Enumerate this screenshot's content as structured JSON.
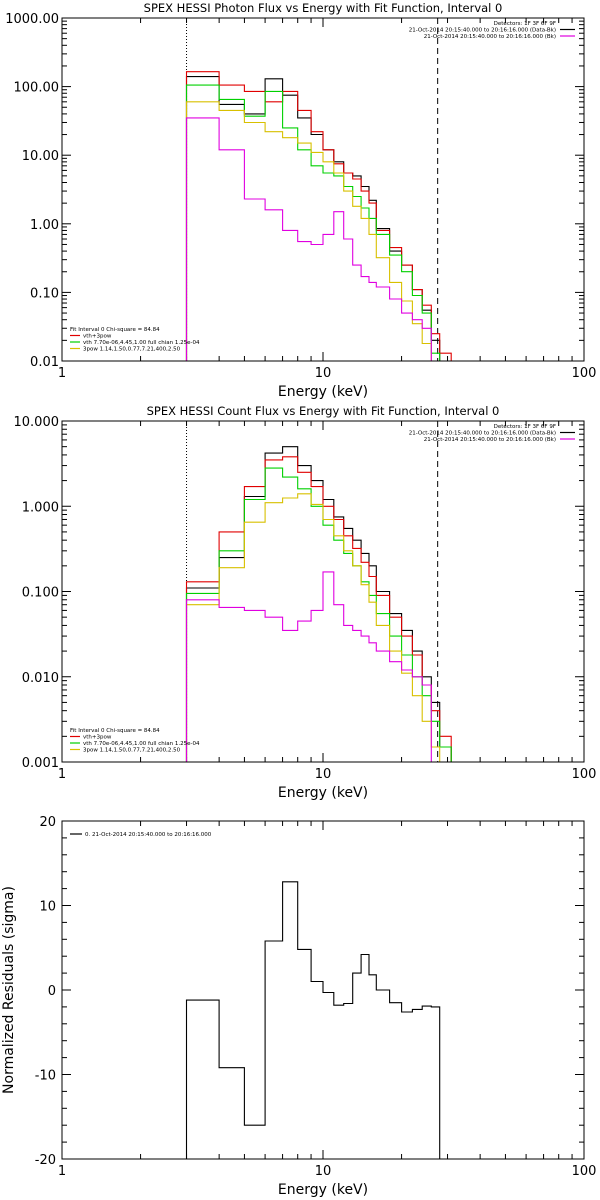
{
  "chart_data": [
    {
      "type": "step-line",
      "scale": {
        "x": "log",
        "y": "log"
      },
      "title": "SPEX HESSI Photon Flux vs Energy with Fit Function, Interval 0",
      "xlabel": "Energy (keV)",
      "xlim": [
        1,
        100
      ],
      "ylim": [
        0.01,
        1000
      ],
      "xticks": [
        "1",
        "10",
        "100"
      ],
      "yticks": [
        "0.01",
        "0.10",
        "1.00",
        "10.00",
        "100.00",
        "1000.00"
      ],
      "legend_top": [
        {
          "text": "Detectors: 1F 3F 6F 9F",
          "color": ""
        },
        {
          "text": "21-Oct-2014 20:15:40.000 to 20:16:16.000 (Data-Bk)",
          "color": "#000000"
        },
        {
          "text": "21-Oct-2014 20:15:40.000 to 20:16:16.000 (Bk)",
          "color": "#e000e0"
        }
      ],
      "legend_bottom": [
        {
          "text": "Fit Interval 0   Chi-square = 84.84",
          "color": ""
        },
        {
          "text": "vth+3pow",
          "color": "#e00000"
        },
        {
          "text": "vth 7.70e-06,4.45,1.00   full chian 1.25e-04",
          "color": "#00d000"
        },
        {
          "text": "3pow 1.14,1.50,0.77,7.21,400,2.50",
          "color": "#d8c000"
        }
      ],
      "vlines": [
        {
          "x": 3.0,
          "style": "dotted"
        },
        {
          "x": 27.5,
          "style": "dashed"
        }
      ],
      "bin_edges": [
        3.0,
        4.0,
        5.0,
        6.0,
        7.0,
        8.0,
        9.0,
        10.0,
        11.0,
        12.0,
        13.0,
        14.0,
        15.0,
        16.0,
        18.0,
        20.0,
        22.0,
        24.0,
        26.0,
        28.0,
        31.0,
        34.0
      ],
      "series": [
        {
          "name": "Data-Bk",
          "color": "#000000",
          "values": [
            140,
            55,
            40,
            130,
            75,
            35,
            20,
            12,
            8,
            5.5,
            5,
            3.5,
            2.2,
            0.85,
            0.4,
            0.25,
            0.11,
            0.055,
            0.02,
            0.01,
            null
          ]
        },
        {
          "name": "vth+3pow",
          "color": "#e00000",
          "values": [
            165,
            105,
            85,
            60,
            85,
            45,
            22,
            12,
            7.5,
            5.5,
            4.5,
            3,
            2,
            0.8,
            0.45,
            0.25,
            0.11,
            0.065,
            0.025,
            0.013,
            null
          ]
        },
        {
          "name": "vth",
          "color": "#00d000",
          "values": [
            105,
            65,
            37,
            85,
            25,
            12,
            7,
            5.5,
            5,
            3.5,
            2.5,
            1.7,
            1.2,
            0.7,
            0.35,
            0.2,
            0.09,
            0.05,
            0.013,
            null,
            null
          ]
        },
        {
          "name": "3pow",
          "color": "#d8c000",
          "values": [
            60,
            45,
            30,
            22,
            18,
            15,
            11,
            8,
            5.5,
            3,
            1.8,
            1.2,
            0.7,
            0.32,
            0.14,
            0.075,
            0.035,
            0.018,
            0.01,
            null,
            null
          ]
        },
        {
          "name": "Bk",
          "color": "#e000e0",
          "values": [
            35,
            12,
            2.3,
            1.6,
            0.8,
            0.55,
            0.5,
            0.7,
            1.5,
            0.6,
            0.25,
            0.17,
            0.14,
            0.12,
            0.08,
            0.05,
            0.04,
            0.03,
            null,
            null,
            null
          ]
        }
      ]
    },
    {
      "type": "step-line",
      "scale": {
        "x": "log",
        "y": "log"
      },
      "title": "SPEX HESSI Count Flux vs Energy with Fit Function, Interval 0",
      "xlabel": "Energy (keV)",
      "xlim": [
        1,
        100
      ],
      "ylim": [
        0.001,
        10
      ],
      "xticks": [
        "1",
        "10",
        "100"
      ],
      "yticks": [
        "0.001",
        "0.010",
        "0.100",
        "1.000",
        "10.000"
      ],
      "legend_top": [
        {
          "text": "Detectors: 1F 3F 6F 9F",
          "color": ""
        },
        {
          "text": "21-Oct-2014 20:15:40.000 to 20:16:16.000 (Data-Bk)",
          "color": "#000000"
        },
        {
          "text": "21-Oct-2014 20:15:40.000 to 20:16:16.000 (Bk)",
          "color": "#e000e0"
        }
      ],
      "legend_bottom": [
        {
          "text": "Fit Interval 0   Chi-square = 84.84",
          "color": ""
        },
        {
          "text": "vth+3pow",
          "color": "#e00000"
        },
        {
          "text": "vth 7.70e-06,4.45,1.00   full chian 1.25e-04",
          "color": "#00d000"
        },
        {
          "text": "3pow 1.14,1.50,0.77,7.21,400,2.50",
          "color": "#d8c000"
        }
      ],
      "vlines": [
        {
          "x": 3.0,
          "style": "dotted"
        },
        {
          "x": 27.5,
          "style": "dashed"
        }
      ],
      "bin_edges": [
        3.0,
        4.0,
        5.0,
        6.0,
        7.0,
        8.0,
        9.0,
        10.0,
        11.0,
        12.0,
        13.0,
        14.0,
        15.0,
        16.0,
        18.0,
        20.0,
        22.0,
        24.0,
        26.0,
        28.0,
        31.0,
        34.0
      ],
      "series": [
        {
          "name": "Data-Bk",
          "color": "#000000",
          "values": [
            0.11,
            0.25,
            1.3,
            4.2,
            5.0,
            3.0,
            2.0,
            1.2,
            0.75,
            0.55,
            0.4,
            0.28,
            0.2,
            0.1,
            0.055,
            0.035,
            0.02,
            0.01,
            0.005,
            0.0015,
            null
          ]
        },
        {
          "name": "vth+3pow",
          "color": "#e00000",
          "values": [
            0.13,
            0.5,
            1.7,
            3.5,
            3.8,
            2.5,
            1.7,
            1.0,
            0.7,
            0.45,
            0.32,
            0.22,
            0.15,
            0.09,
            0.05,
            0.03,
            0.018,
            0.008,
            0.004,
            0.002,
            null
          ]
        },
        {
          "name": "vth",
          "color": "#00d000",
          "values": [
            0.095,
            0.3,
            1.2,
            2.8,
            2.2,
            1.6,
            1.0,
            0.6,
            0.4,
            0.28,
            0.2,
            0.13,
            0.09,
            0.055,
            0.03,
            0.018,
            0.01,
            0.006,
            0.003,
            0.0015,
            null
          ]
        },
        {
          "name": "3pow",
          "color": "#d8c000",
          "values": [
            0.07,
            0.19,
            0.65,
            1.1,
            1.25,
            1.4,
            1.05,
            0.7,
            0.45,
            0.3,
            0.2,
            0.12,
            0.075,
            0.04,
            0.02,
            0.011,
            0.006,
            0.003,
            0.0015,
            null,
            null
          ]
        },
        {
          "name": "Bk",
          "color": "#e000e0",
          "values": [
            0.08,
            0.065,
            0.06,
            0.05,
            0.035,
            0.045,
            0.06,
            0.17,
            0.07,
            0.04,
            0.035,
            0.03,
            0.025,
            0.02,
            0.015,
            0.012,
            0.01,
            0.008,
            null,
            null,
            null
          ]
        }
      ]
    },
    {
      "type": "step-line",
      "scale": {
        "x": "log",
        "y": "linear"
      },
      "title": "",
      "xlabel": "Energy (keV)",
      "ylabel": "Normalized Residuals (sigma)",
      "xlim": [
        1,
        100
      ],
      "ylim": [
        -20,
        20
      ],
      "xticks": [
        "1",
        "10",
        "100"
      ],
      "yticks": [
        "-20",
        "-10",
        "0",
        "10",
        "20"
      ],
      "legend_top": [
        {
          "text": "0. 21-Oct-2014 20:15:40.000 to 20:16:16.000",
          "color": "#000000"
        }
      ],
      "bin_edges": [
        3.0,
        4.0,
        5.0,
        6.0,
        7.0,
        8.0,
        9.0,
        10.0,
        11.0,
        12.0,
        13.0,
        14.0,
        15.0,
        16.0,
        18.0,
        20.0,
        22.0,
        24.0,
        26.0,
        28.0
      ],
      "series": [
        {
          "name": "Residuals",
          "color": "#000000",
          "values": [
            -1.2,
            -9.2,
            -16.0,
            5.8,
            12.8,
            4.8,
            1.0,
            -0.3,
            -1.8,
            -1.6,
            2.0,
            4.2,
            1.8,
            0.0,
            -1.5,
            -2.6,
            -2.3,
            -1.9,
            -2.0
          ]
        }
      ]
    }
  ]
}
